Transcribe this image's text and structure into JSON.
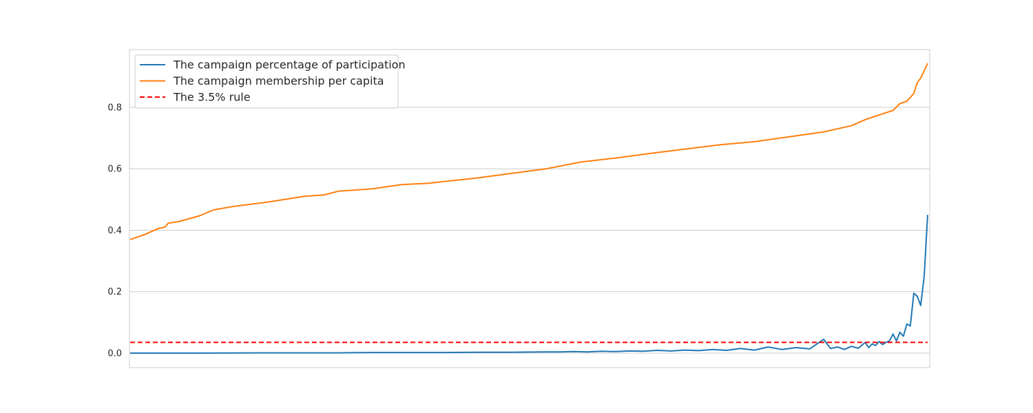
{
  "chart_data": {
    "type": "line",
    "title": "",
    "xlabel": "",
    "ylabel": "",
    "ylim": [
      -0.047,
      0.988
    ],
    "yticks": [
      0.0,
      0.2,
      0.4,
      0.6,
      0.8
    ],
    "ytick_labels": [
      "0.0",
      "0.2",
      "0.4",
      "0.6",
      "0.8"
    ],
    "xticks_shown": false,
    "grid": "horizontal",
    "legend_position": "top-left",
    "series": [
      {
        "name": "The campaign percentage of participation",
        "color": "#1f77b4",
        "style": "solid",
        "x": [
          0,
          100,
          200,
          250,
          300,
          350,
          400,
          450,
          500,
          550,
          600,
          620,
          640,
          660,
          680,
          700,
          720,
          740,
          760,
          780,
          800,
          820,
          840,
          860,
          880,
          900,
          920,
          940,
          960,
          980,
          1000,
          1010,
          1020,
          1030,
          1040,
          1050,
          1060,
          1065,
          1070,
          1075,
          1080,
          1085,
          1090,
          1095,
          1100,
          1105,
          1110,
          1115,
          1120,
          1125,
          1130,
          1135,
          1140,
          1145,
          1150
        ],
        "values": [
          0.0,
          0.0,
          0.001,
          0.001,
          0.001,
          0.002,
          0.002,
          0.002,
          0.003,
          0.003,
          0.004,
          0.004,
          0.005,
          0.004,
          0.006,
          0.005,
          0.007,
          0.006,
          0.009,
          0.007,
          0.01,
          0.008,
          0.012,
          0.009,
          0.015,
          0.01,
          0.02,
          0.012,
          0.018,
          0.014,
          0.045,
          0.015,
          0.02,
          0.012,
          0.022,
          0.016,
          0.035,
          0.018,
          0.03,
          0.025,
          0.038,
          0.028,
          0.035,
          0.04,
          0.062,
          0.04,
          0.068,
          0.055,
          0.095,
          0.088,
          0.195,
          0.185,
          0.155,
          0.25,
          0.45
        ]
      },
      {
        "name": "The campaign membership per capita",
        "color": "#ff7f0e",
        "style": "solid",
        "x": [
          0,
          20,
          40,
          50,
          55,
          70,
          100,
          120,
          150,
          200,
          250,
          280,
          300,
          350,
          390,
          395,
          430,
          500,
          550,
          590,
          600,
          650,
          700,
          750,
          800,
          850,
          900,
          960,
          1000,
          1040,
          1060,
          1080,
          1100,
          1110,
          1120,
          1130,
          1135,
          1140,
          1150
        ],
        "values": [
          0.37,
          0.385,
          0.405,
          0.41,
          0.423,
          0.428,
          0.447,
          0.466,
          0.478,
          0.492,
          0.51,
          0.515,
          0.527,
          0.535,
          0.548,
          0.549,
          0.553,
          0.57,
          0.585,
          0.597,
          0.6,
          0.622,
          0.635,
          0.65,
          0.664,
          0.678,
          0.688,
          0.707,
          0.72,
          0.74,
          0.76,
          0.775,
          0.79,
          0.812,
          0.82,
          0.845,
          0.88,
          0.895,
          0.943
        ]
      },
      {
        "name": "The 3.5% rule",
        "color": "#ff0000",
        "style": "dashed",
        "x": [
          0,
          1150
        ],
        "values": [
          0.035,
          0.035
        ]
      }
    ]
  }
}
